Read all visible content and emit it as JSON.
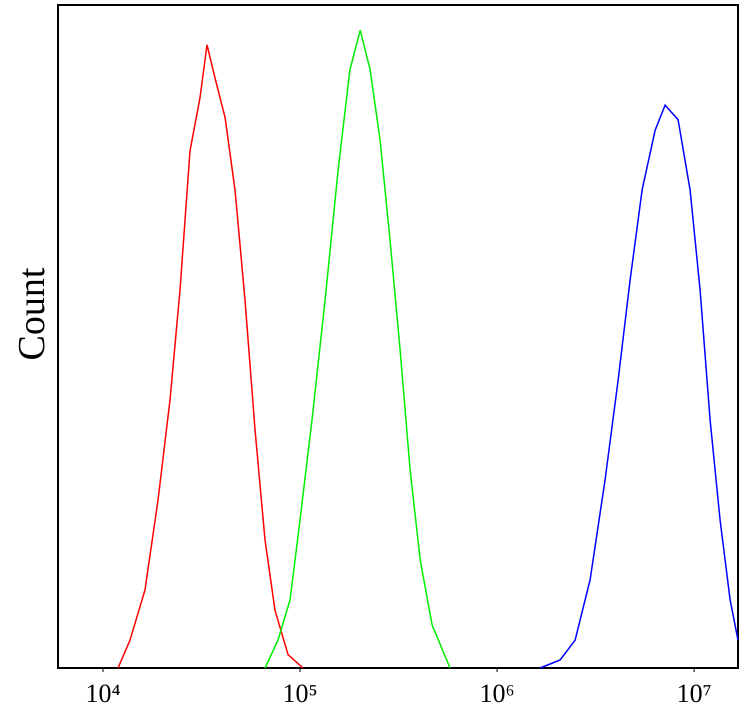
{
  "chart_data": {
    "type": "line",
    "y_label": "Count",
    "x_scale": "log",
    "xlim": [
      5910,
      16700000
    ],
    "ylim": [
      0,
      100
    ],
    "xticks": [
      {
        "value": 10000,
        "label": "10⁴"
      },
      {
        "value": 100000,
        "label": "10⁵"
      },
      {
        "value": 1000000,
        "label": "10⁶"
      },
      {
        "value": 10000000,
        "label": "10⁷"
      }
    ],
    "series": [
      {
        "color": "#ff0000",
        "x": [
          11920,
          13710,
          16340,
          19020,
          21890,
          24600,
          27640,
          31070,
          33730,
          37030,
          41630,
          46790,
          52580,
          59100,
          66430,
          74670,
          86940,
          103560
        ],
        "values": [
          0,
          4.2,
          11.8,
          25.3,
          40.4,
          57,
          78,
          86,
          94,
          89,
          83,
          72,
          55.5,
          36,
          19.3,
          8.7,
          2,
          0
        ]
      },
      {
        "color": "#00ee00",
        "x": [
          66400,
          77300,
          89000,
          100000,
          115000,
          134000,
          156000,
          179000,
          202000,
          227000,
          255000,
          286000,
          322000,
          362000,
          407000,
          468000,
          577000
        ],
        "values": [
          0,
          4.2,
          10.3,
          22.3,
          37.4,
          55.5,
          75.1,
          90.2,
          96.2,
          90.2,
          79.6,
          64.6,
          48,
          29.9,
          16.3,
          6.5,
          0
        ]
      },
      {
        "color": "#0000ff",
        "x": [
          1654000,
          2089000,
          2489000,
          2966000,
          3534000,
          4114000,
          4733000,
          5445000,
          6339000,
          7126000,
          8296000,
          9544000,
          10730000,
          12060000,
          13550000,
          15230000,
          16700000
        ],
        "values": [
          0,
          1.2,
          4.2,
          13.3,
          28.4,
          43.4,
          58.5,
          72.1,
          81.1,
          84.9,
          82.7,
          72.1,
          57,
          37.4,
          22.3,
          10.3,
          4.2
        ]
      }
    ]
  }
}
